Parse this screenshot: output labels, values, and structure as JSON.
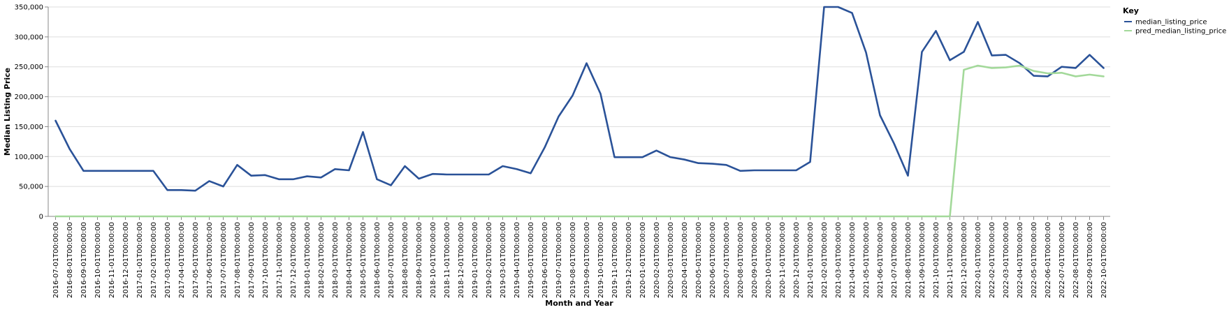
{
  "chart_data": {
    "type": "line",
    "xlabel": "Month and Year",
    "ylabel": "Median Listing Price",
    "ylim": [
      0,
      350000
    ],
    "yticks": [
      0,
      50000,
      100000,
      150000,
      200000,
      250000,
      300000,
      350000
    ],
    "ytick_labels": [
      "0",
      "50,000",
      "100,000",
      "150,000",
      "200,000",
      "250,000",
      "300,000",
      "350,000"
    ],
    "grid": true,
    "legend": {
      "title": "Key",
      "placement": "top-right"
    },
    "categories": [
      "2016-07-01T00:00:00",
      "2016-08-01T00:00:00",
      "2016-09-01T00:00:00",
      "2016-10-01T00:00:00",
      "2016-11-01T00:00:00",
      "2016-12-01T00:00:00",
      "2017-01-01T00:00:00",
      "2017-02-01T00:00:00",
      "2017-03-01T00:00:00",
      "2017-04-01T00:00:00",
      "2017-05-01T00:00:00",
      "2017-06-01T00:00:00",
      "2017-07-01T00:00:00",
      "2017-08-01T00:00:00",
      "2017-09-01T00:00:00",
      "2017-10-01T00:00:00",
      "2017-11-01T00:00:00",
      "2017-12-01T00:00:00",
      "2018-01-01T00:00:00",
      "2018-02-01T00:00:00",
      "2018-03-01T00:00:00",
      "2018-04-01T00:00:00",
      "2018-05-01T00:00:00",
      "2018-06-01T00:00:00",
      "2018-07-01T00:00:00",
      "2018-08-01T00:00:00",
      "2018-09-01T00:00:00",
      "2018-10-01T00:00:00",
      "2018-11-01T00:00:00",
      "2018-12-01T00:00:00",
      "2019-01-01T00:00:00",
      "2019-02-01T00:00:00",
      "2019-03-01T00:00:00",
      "2019-04-01T00:00:00",
      "2019-05-01T00:00:00",
      "2019-06-01T00:00:00",
      "2019-07-01T00:00:00",
      "2019-08-01T00:00:00",
      "2019-09-01T00:00:00",
      "2019-10-01T00:00:00",
      "2019-11-01T00:00:00",
      "2019-12-01T00:00:00",
      "2020-01-01T00:00:00",
      "2020-02-01T00:00:00",
      "2020-03-01T00:00:00",
      "2020-04-01T00:00:00",
      "2020-05-01T00:00:00",
      "2020-06-01T00:00:00",
      "2020-07-01T00:00:00",
      "2020-08-01T00:00:00",
      "2020-09-01T00:00:00",
      "2020-10-01T00:00:00",
      "2020-11-01T00:00:00",
      "2020-12-01T00:00:00",
      "2021-01-01T00:00:00",
      "2021-02-01T00:00:00",
      "2021-03-01T00:00:00",
      "2021-04-01T00:00:00",
      "2021-05-01T00:00:00",
      "2021-06-01T00:00:00",
      "2021-07-01T00:00:00",
      "2021-08-01T00:00:00",
      "2021-09-01T00:00:00",
      "2021-10-01T00:00:00",
      "2021-11-01T00:00:00",
      "2021-12-01T00:00:00",
      "2022-01-01T00:00:00",
      "2022-02-01T00:00:00",
      "2022-03-01T00:00:00",
      "2022-04-01T00:00:00",
      "2022-05-01T00:00:00",
      "2022-06-01T00:00:00",
      "2022-07-01T00:00:00",
      "2022-08-01T00:00:00",
      "2022-09-01T00:00:00",
      "2022-10-01T00:00:00"
    ],
    "series": [
      {
        "name": "median_listing_price",
        "color": "#2a5298",
        "values": [
          160000,
          113000,
          76000,
          76000,
          76000,
          76000,
          76000,
          76000,
          44000,
          44000,
          43000,
          59000,
          50000,
          86000,
          68000,
          69000,
          62000,
          62000,
          67000,
          65000,
          79000,
          77000,
          141000,
          62000,
          52000,
          84000,
          63000,
          71000,
          70000,
          70000,
          70000,
          70000,
          84000,
          79000,
          72000,
          115000,
          167000,
          202000,
          256000,
          205000,
          99000,
          99000,
          99000,
          110000,
          99000,
          95000,
          89000,
          88000,
          86000,
          76000,
          77000,
          77000,
          77000,
          77000,
          91000,
          350000,
          350000,
          340000,
          274000,
          169000,
          122000,
          68000,
          275000,
          310000,
          261000,
          275000,
          325000,
          269000,
          270000,
          256000,
          235000,
          234000,
          250000,
          248000,
          270000,
          248000
        ]
      },
      {
        "name": "pred_median_listing_price",
        "color": "#a3d99a",
        "values": [
          0,
          0,
          0,
          0,
          0,
          0,
          0,
          0,
          0,
          0,
          0,
          0,
          0,
          0,
          0,
          0,
          0,
          0,
          0,
          0,
          0,
          0,
          0,
          0,
          0,
          0,
          0,
          0,
          0,
          0,
          0,
          0,
          0,
          0,
          0,
          0,
          0,
          0,
          0,
          0,
          0,
          0,
          0,
          0,
          0,
          0,
          0,
          0,
          0,
          0,
          0,
          0,
          0,
          0,
          0,
          0,
          0,
          0,
          0,
          0,
          0,
          0,
          0,
          0,
          0,
          245000,
          252000,
          248000,
          249000,
          252000,
          243000,
          239000,
          240000,
          234000,
          237000,
          234000
        ]
      }
    ]
  }
}
